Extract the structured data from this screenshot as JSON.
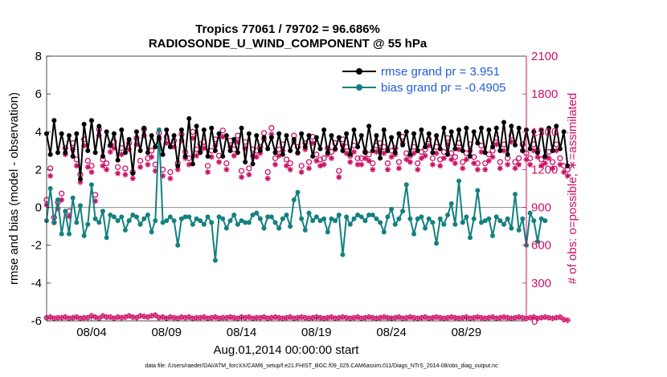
{
  "chart_data": {
    "type": "line",
    "title_line1": "Tropics 77061 / 79702 = 96.686%",
    "title_line2": "RADIOSONDE_U_WIND_COMPONENT @ 55 hPa",
    "xlabel": "Aug.01,2014 00:00:00 start",
    "ylabel_left": "rmse and bias (model - observation)",
    "ylabel_right": "# of obs: o=possible; ∗=assimilated",
    "ylim_left": [
      -6,
      8
    ],
    "ylim_right": [
      0,
      2100
    ],
    "xlim_days": [
      1,
      33
    ],
    "yticks_left": [
      "-6",
      "-4",
      "-2",
      "0",
      "2",
      "4",
      "6",
      "8"
    ],
    "yticks_right": [
      "0",
      "300",
      "600",
      "900",
      "1200",
      "1500",
      "1800",
      "2100"
    ],
    "xticks": [
      {
        "day": 4,
        "label": "08/04"
      },
      {
        "day": 9,
        "label": "08/09"
      },
      {
        "day": 14,
        "label": "08/14"
      },
      {
        "day": 19,
        "label": "08/19"
      },
      {
        "day": 24,
        "label": "08/24"
      },
      {
        "day": 29,
        "label": "08/29"
      }
    ],
    "legend": [
      {
        "label": "rmse grand pr = 3.951",
        "color": "#000000"
      },
      {
        "label": "bias grand pr = -0.4905",
        "color": "#148080"
      }
    ],
    "colors": {
      "rmse": "#000000",
      "bias": "#148080",
      "obs": "#CC1166",
      "right_axis": "#CC1166",
      "legend_text": "#1f5fd6",
      "zero_line": "#999999"
    },
    "x_start_day": 1,
    "x_step_days": 0.25,
    "series": [
      {
        "name": "rmse",
        "values": [
          3.9,
          2.8,
          4.6,
          2.9,
          3.9,
          2.9,
          3.8,
          2.7,
          3.9,
          1.5,
          4.4,
          3.0,
          4.6,
          2.9,
          4.3,
          2.7,
          4.0,
          3.3,
          3.9,
          2.5,
          4.1,
          2.9,
          3.6,
          1.8,
          4.0,
          3.0,
          4.2,
          2.9,
          3.8,
          3.2,
          3.7,
          2.8,
          4.1,
          3.2,
          3.8,
          2.2,
          4.1,
          2.7,
          4.7,
          2.3,
          4.3,
          2.9,
          4.1,
          2.7,
          4.2,
          3.0,
          3.9,
          2.7,
          3.8,
          3.0,
          3.6,
          2.9,
          4.2,
          2.4,
          3.9,
          2.3,
          3.8,
          3.0,
          3.7,
          3.1,
          3.7,
          2.9,
          3.9,
          2.8,
          3.8,
          3.0,
          3.6,
          2.9,
          3.9,
          3.2,
          3.8,
          2.7,
          3.7,
          3.1,
          4.1,
          2.9,
          3.8,
          3.1,
          3.7,
          3.0,
          3.9,
          2.8,
          4.1,
          3.2,
          3.8,
          2.9,
          4.3,
          3.0,
          3.8,
          2.6,
          4.1,
          3.0,
          3.7,
          2.9,
          3.9,
          3.3,
          4.0,
          2.8,
          3.9,
          3.0,
          4.1,
          3.2,
          3.9,
          2.9,
          3.8,
          3.1,
          4.2,
          2.8,
          4.0,
          3.1,
          4.1,
          3.0,
          4.2,
          2.7,
          4.0,
          3.4,
          4.2,
          2.9,
          4.1,
          3.2,
          4.2,
          3.0,
          4.5,
          2.8,
          4.3,
          3.3,
          4.2,
          3.0,
          4.1,
          3.1,
          4.0,
          2.9,
          4.1,
          2.7,
          4.2,
          3.0,
          4.3,
          3.1,
          4.0,
          2.2
        ],
        "color": "#000000"
      },
      {
        "name": "bias",
        "values": [
          -0.7,
          1.0,
          -0.8,
          0.4,
          -1.4,
          -0.2,
          -1.4,
          0.5,
          -0.8,
          0.1,
          -1.5,
          -0.9,
          1.2,
          -0.6,
          -0.8,
          -0.2,
          -1.6,
          -0.4,
          -0.5,
          -0.7,
          -0.5,
          -1.2,
          -0.7,
          -0.4,
          -0.5,
          -0.9,
          -0.6,
          -0.4,
          -1.3,
          -0.7,
          4.1,
          -0.8,
          -0.7,
          -0.5,
          -0.7,
          -2.0,
          -0.6,
          -0.5,
          -0.5,
          -0.9,
          -0.6,
          -0.7,
          -0.9,
          -0.5,
          -0.8,
          -2.8,
          -0.5,
          -0.6,
          -1.1,
          -0.7,
          -0.4,
          -0.9,
          -0.7,
          -0.8,
          -0.8,
          -0.4,
          -0.3,
          -0.6,
          -1.1,
          -0.5,
          -0.5,
          -0.8,
          -1.1,
          -0.6,
          -0.4,
          -1.0,
          0.4,
          0.8,
          -0.6,
          -1.2,
          -0.3,
          -0.7,
          -0.5,
          -0.7,
          -0.6,
          -1.3,
          -0.6,
          -0.7,
          -0.4,
          -2.5,
          -0.5,
          -0.9,
          -0.6,
          -0.4,
          -0.5,
          -0.7,
          -0.4,
          -0.4,
          -0.6,
          -0.8,
          -1.3,
          -0.5,
          -0.1,
          -0.9,
          -0.6,
          -0.2,
          1.2,
          -0.6,
          -1.4,
          -0.6,
          -0.5,
          -1.1,
          -0.6,
          -0.8,
          -1.9,
          -0.6,
          -0.9,
          -0.4,
          0.2,
          -0.9,
          1.4,
          -0.8,
          -0.5,
          -1.6,
          -0.6,
          0.9,
          -0.8,
          -0.7,
          -0.6,
          -1.5,
          -0.5,
          -0.7,
          -0.9,
          -0.6,
          -1.1,
          0.7,
          -1.2,
          -0.6,
          -2.0,
          -0.3,
          -0.7,
          -1.8,
          -0.6,
          -0.7
        ],
        "color": "#148080"
      },
      {
        "name": "obs_possible",
        "values": [
          960,
          1210,
          820,
          940,
          1010,
          1370,
          870,
          1410,
          1280,
          1160,
          1440,
          1270,
          1230,
          1000,
          1520,
          1280,
          1250,
          1390,
          1420,
          1220,
          1370,
          1210,
          1410,
          1180,
          1450,
          1270,
          1520,
          1290,
          1350,
          1240,
          1490,
          1200,
          1460,
          1180,
          1430,
          1250,
          1480,
          1340,
          1290,
          1500,
          1360,
          1400,
          1420,
          1230,
          1350,
          1440,
          1310,
          1510,
          1250,
          1430,
          1360,
          1470,
          1190,
          1420,
          1210,
          1360,
          1350,
          1380,
          1490,
          1180,
          1530,
          1290,
          1360,
          1400,
          1280,
          1250,
          1470,
          1380,
          1230,
          1410,
          1260,
          1460,
          1320,
          1280,
          1290,
          1370,
          1340,
          1410,
          1190,
          1440,
          1380,
          1310,
          1390,
          1290,
          1290,
          1340,
          1320,
          1250,
          1390,
          1410,
          1380,
          1250,
          1350,
          1370,
          1260,
          1460,
          1330,
          1310,
          1380,
          1250,
          1340,
          1360,
          1440,
          1290,
          1380,
          1280,
          1340,
          1450,
          1330,
          1300,
          1410,
          1260,
          1330,
          1400,
          1300,
          1250,
          1390,
          1250,
          1320,
          1350,
          1450,
          1260,
          1400,
          1290,
          1470,
          1260,
          1290,
          1400,
          1330,
          1290,
          1400,
          1350,
          1280,
          1300,
          1340,
          1260,
          1400,
          1290,
          1230,
          1200
        ],
        "color": "#CC1166"
      },
      {
        "name": "obs_assimilated",
        "values": [
          920,
          1150,
          780,
          890,
          960,
          1320,
          830,
          1360,
          1230,
          1100,
          1390,
          1220,
          1180,
          950,
          1470,
          1230,
          1200,
          1340,
          1370,
          1170,
          1320,
          1160,
          1360,
          1130,
          1400,
          1220,
          1470,
          1240,
          1300,
          1190,
          1440,
          1150,
          1410,
          1130,
          1380,
          1200,
          1430,
          1290,
          1240,
          1450,
          1310,
          1350,
          1370,
          1180,
          1300,
          1390,
          1260,
          1460,
          1200,
          1380,
          1310,
          1420,
          1140,
          1370,
          1160,
          1310,
          1300,
          1330,
          1440,
          1130,
          1480,
          1240,
          1310,
          1350,
          1230,
          1200,
          1420,
          1330,
          1180,
          1360,
          1210,
          1410,
          1270,
          1230,
          1240,
          1320,
          1290,
          1360,
          1140,
          1390,
          1330,
          1260,
          1340,
          1240,
          1240,
          1290,
          1270,
          1200,
          1340,
          1360,
          1330,
          1200,
          1300,
          1320,
          1210,
          1410,
          1280,
          1260,
          1330,
          1200,
          1290,
          1310,
          1390,
          1240,
          1330,
          1230,
          1290,
          1400,
          1280,
          1250,
          1360,
          1210,
          1280,
          1350,
          1250,
          1200,
          1340,
          1200,
          1270,
          1300,
          1400,
          1210,
          1350,
          1240,
          1420,
          1210,
          1240,
          1350,
          1280,
          1240,
          1350,
          1300,
          1230,
          1250,
          1290,
          1210,
          1350,
          1240,
          1180,
          1150
        ],
        "color": "#CC1166"
      }
    ],
    "bottom_obs_values": [
      25,
      30,
      20,
      25,
      25,
      30,
      20,
      25,
      30,
      20,
      25,
      25,
      40,
      30,
      20,
      40,
      30,
      30,
      20,
      30,
      25,
      30,
      40,
      30,
      25,
      40,
      35,
      30,
      40,
      45,
      25,
      30,
      20,
      30,
      25,
      20,
      30,
      25,
      30,
      20,
      25,
      25,
      30,
      20,
      25,
      30,
      20,
      25,
      25,
      30,
      25,
      20,
      30,
      25,
      30,
      20,
      25,
      25,
      30,
      20,
      25,
      30,
      25,
      20,
      25,
      30,
      20,
      25,
      30,
      25,
      20,
      25,
      30,
      25,
      20,
      25,
      30,
      20,
      25,
      30,
      25,
      20,
      25,
      30,
      20,
      25,
      30,
      25,
      20,
      25,
      30,
      25,
      20,
      25,
      30,
      20,
      25,
      30,
      25,
      20,
      25,
      30,
      20,
      25,
      30,
      25,
      20,
      25,
      30,
      25,
      20,
      25,
      30,
      20,
      25,
      30,
      25,
      20,
      25,
      30,
      20,
      25,
      30,
      25,
      20,
      25,
      30,
      25,
      20,
      25,
      30,
      20,
      25,
      30,
      25,
      20,
      25,
      30,
      10,
      5
    ]
  },
  "footnote": "data file: /Users/raeder/DAI/ATM_forcXX/CAM6_setup/f.e21.FHIST_BGC.f09_025.CAM6assim.011/Diags_NTrS_2014-08/obs_diag_output.nc"
}
